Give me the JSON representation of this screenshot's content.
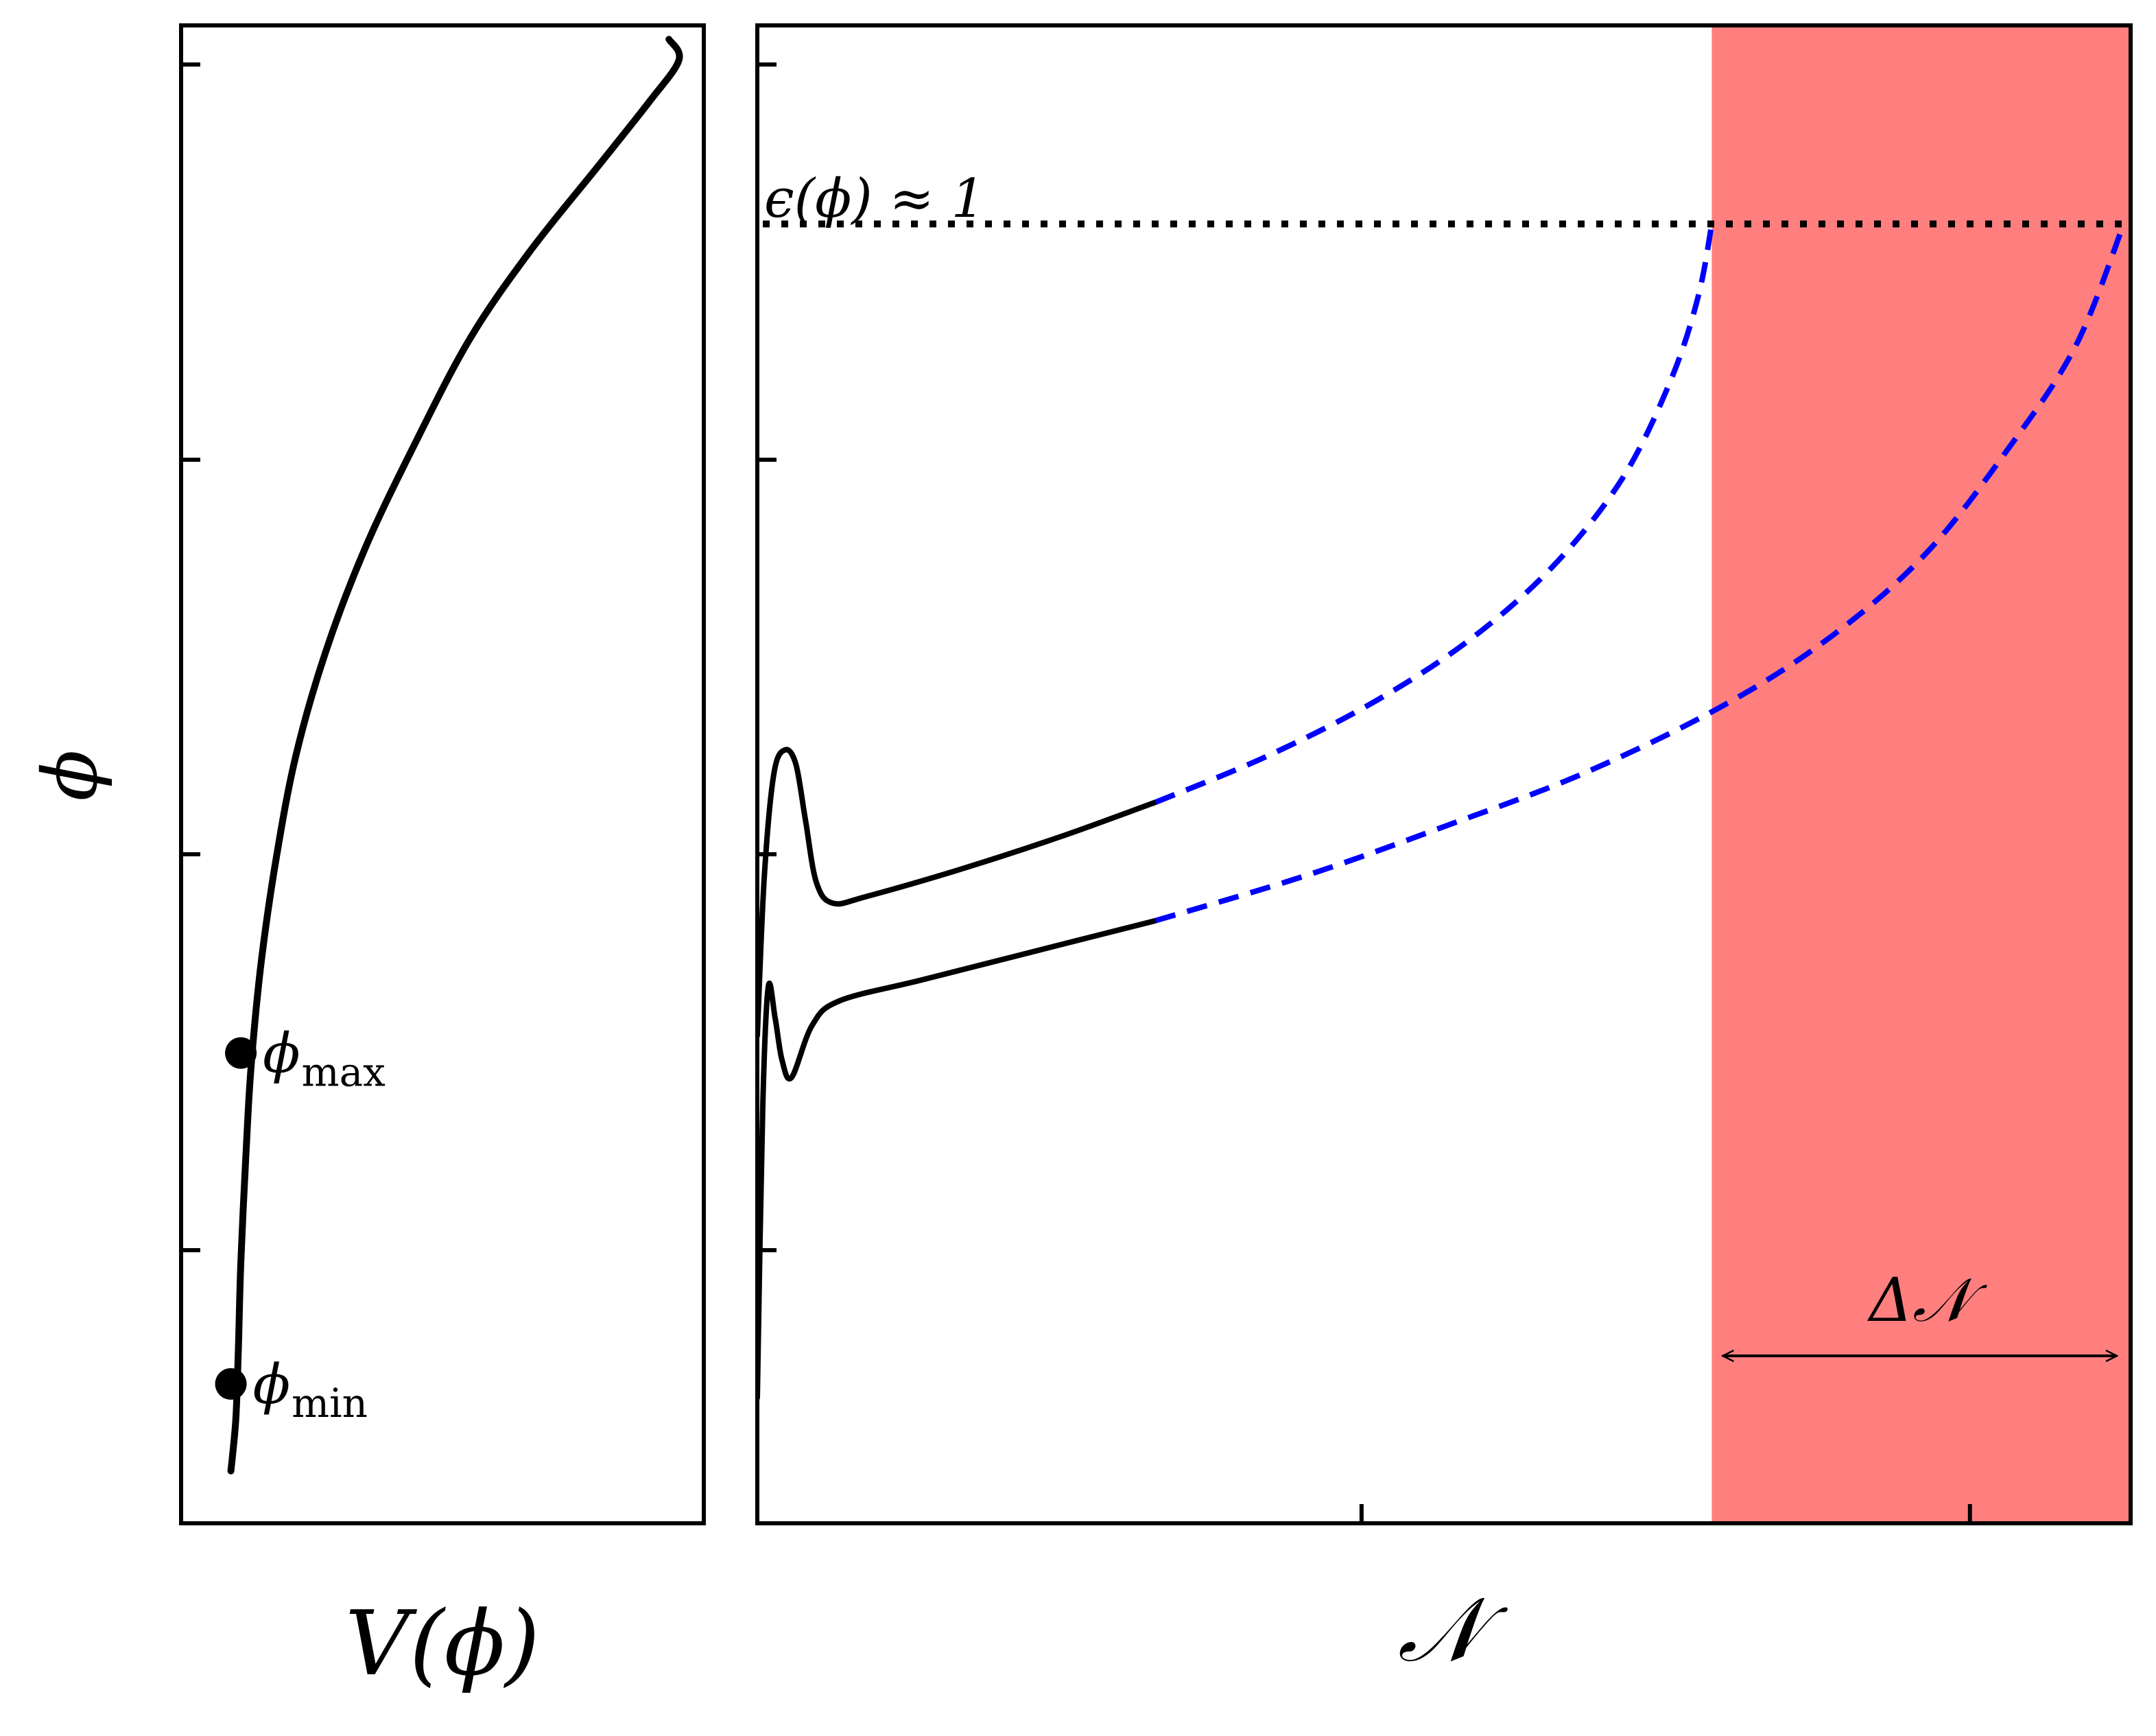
{
  "chart_data": [
    {
      "type": "line",
      "panel": "left",
      "xlabel": "V(ϕ)",
      "ylabel": "ϕ",
      "xticks": [],
      "yticks": [
        "",
        "",
        "",
        ""
      ],
      "grid": false,
      "series": [
        {
          "style": "solid",
          "color": "#000000",
          "points": [
            [
              0.1,
              -0.05
            ],
            [
              0.11,
              0.1
            ],
            [
              0.115,
              0.3
            ],
            [
              0.12,
              0.55
            ],
            [
              0.13,
              0.85
            ],
            [
              0.14,
              1.1
            ],
            [
              0.16,
              1.4
            ],
            [
              0.19,
              1.7
            ],
            [
              0.23,
              2.0
            ],
            [
              0.29,
              2.3
            ],
            [
              0.37,
              2.6
            ],
            [
              0.47,
              2.9
            ],
            [
              0.58,
              3.2
            ],
            [
              0.7,
              3.45
            ],
            [
              0.84,
              3.7
            ],
            [
              0.94,
              3.88
            ],
            [
              1.0,
              4.0
            ],
            [
              0.98,
              4.06
            ]
          ]
        }
      ],
      "markers": [
        {
          "label": "ϕ",
          "sub": "max",
          "x": 0.12,
          "y": 1.15
        },
        {
          "label": "ϕ",
          "sub": "min",
          "x": 0.1,
          "y": 0.2
        }
      ],
      "xlim": [
        0,
        1.05
      ],
      "ylim": [
        -0.2,
        4.1
      ]
    },
    {
      "type": "line",
      "panel": "right",
      "xlabel": "𝒩",
      "xticks": [
        "",
        ""
      ],
      "yticks": [
        "",
        "",
        "",
        ""
      ],
      "grid": false,
      "end_line": {
        "label": "ϵ(ϕ) ≈ 1",
        "y": 3.53,
        "style": "dotted",
        "color": "#000000"
      },
      "shaded_region": {
        "x_from": 0.695,
        "x_to": 1.0,
        "color": "#ff7f7f",
        "annotation": "Δ𝒩"
      },
      "series": [
        {
          "style": "solid",
          "color": "#000000",
          "points": [
            [
              0.0,
              1.2
            ],
            [
              0.005,
              1.65
            ],
            [
              0.012,
              1.95
            ],
            [
              0.02,
              2.02
            ],
            [
              0.028,
              1.98
            ],
            [
              0.035,
              1.82
            ],
            [
              0.043,
              1.64
            ],
            [
              0.055,
              1.58
            ],
            [
              0.08,
              1.6
            ],
            [
              0.15,
              1.68
            ],
            [
              0.22,
              1.77
            ],
            [
              0.29,
              1.87
            ]
          ]
        },
        {
          "style": "dashed",
          "color": "#0000ff",
          "points": [
            [
              0.29,
              1.87
            ],
            [
              0.37,
              2.0
            ],
            [
              0.45,
              2.16
            ],
            [
              0.52,
              2.34
            ],
            [
              0.58,
              2.55
            ],
            [
              0.63,
              2.8
            ],
            [
              0.665,
              3.08
            ],
            [
              0.685,
              3.32
            ],
            [
              0.695,
              3.53
            ]
          ]
        },
        {
          "style": "solid",
          "color": "#000000",
          "points": [
            [
              0.0,
              0.16
            ],
            [
              0.004,
              1.0
            ],
            [
              0.008,
              1.34
            ],
            [
              0.013,
              1.25
            ],
            [
              0.018,
              1.13
            ],
            [
              0.025,
              1.08
            ],
            [
              0.04,
              1.23
            ],
            [
              0.06,
              1.3
            ],
            [
              0.12,
              1.36
            ],
            [
              0.2,
              1.44
            ],
            [
              0.29,
              1.53
            ]
          ]
        },
        {
          "style": "dashed",
          "color": "#0000ff",
          "points": [
            [
              0.29,
              1.53
            ],
            [
              0.4,
              1.66
            ],
            [
              0.5,
              1.8
            ],
            [
              0.6,
              1.95
            ],
            [
              0.7,
              2.14
            ],
            [
              0.78,
              2.34
            ],
            [
              0.85,
              2.58
            ],
            [
              0.91,
              2.88
            ],
            [
              0.96,
              3.18
            ],
            [
              0.995,
              3.53
            ]
          ]
        }
      ],
      "xlim": [
        0,
        1.0
      ],
      "ylim": [
        -0.2,
        4.1
      ]
    }
  ]
}
